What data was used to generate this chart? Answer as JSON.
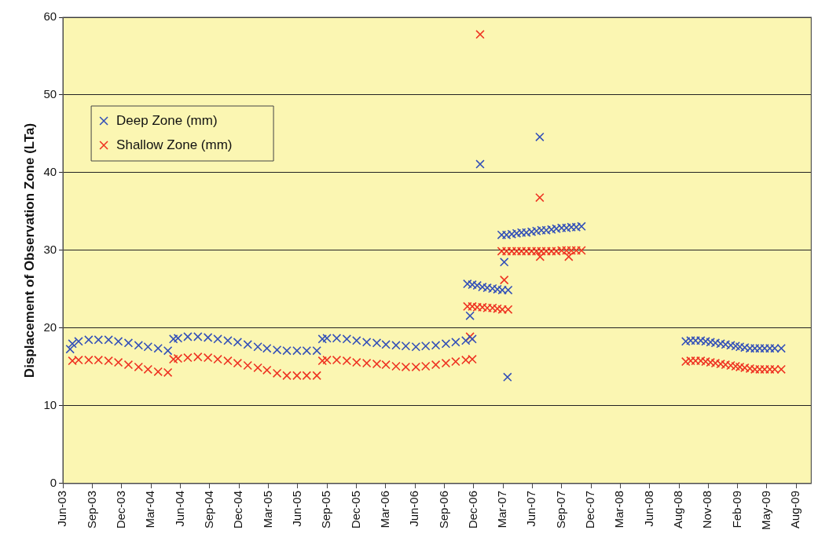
{
  "chart_data": {
    "type": "scatter",
    "ylabel": "Displacement of Observation Zone (LTa)",
    "xlim": [
      "2003-06-28",
      "2009-10-10"
    ],
    "xticks": [
      {
        "value": "2003-06-28",
        "label": "Jun-03"
      },
      {
        "value": "2003-09-26",
        "label": "Sep-03"
      },
      {
        "value": "2003-12-25",
        "label": "Dec-03"
      },
      {
        "value": "2004-03-24",
        "label": "Mar-04"
      },
      {
        "value": "2004-06-22",
        "label": "Jun-04"
      },
      {
        "value": "2004-09-20",
        "label": "Sep-04"
      },
      {
        "value": "2004-12-19",
        "label": "Dec-04"
      },
      {
        "value": "2005-03-19",
        "label": "Mar-05"
      },
      {
        "value": "2005-06-17",
        "label": "Jun-05"
      },
      {
        "value": "2005-09-15",
        "label": "Sep-05"
      },
      {
        "value": "2005-12-14",
        "label": "Dec-05"
      },
      {
        "value": "2006-03-14",
        "label": "Mar-06"
      },
      {
        "value": "2006-06-12",
        "label": "Jun-06"
      },
      {
        "value": "2006-09-10",
        "label": "Sep-06"
      },
      {
        "value": "2006-12-09",
        "label": "Dec-06"
      },
      {
        "value": "2007-03-09",
        "label": "Mar-07"
      },
      {
        "value": "2007-06-07",
        "label": "Jun-07"
      },
      {
        "value": "2007-09-05",
        "label": "Sep-07"
      },
      {
        "value": "2007-12-04",
        "label": "Dec-07"
      },
      {
        "value": "2008-03-03",
        "label": "Mar-08"
      },
      {
        "value": "2008-06-01",
        "label": "Jun-08"
      },
      {
        "value": "2008-08-30",
        "label": "Aug-08"
      },
      {
        "value": "2008-11-28",
        "label": "Nov-08"
      },
      {
        "value": "2009-02-26",
        "label": "Feb-09"
      },
      {
        "value": "2009-05-27",
        "label": "May-09"
      },
      {
        "value": "2009-08-25",
        "label": "Aug-09"
      }
    ],
    "ylim": [
      0,
      60
    ],
    "yticks": [
      0,
      10,
      20,
      30,
      40,
      50,
      60
    ],
    "grid": "y",
    "legend": "top left",
    "series": [
      {
        "name": "Deep Zone (mm)",
        "color": "#3350b8",
        "marker": "cross",
        "x": [
          "2003-07-20",
          "2003-07-27",
          "2003-08-15",
          "2003-09-15",
          "2003-10-15",
          "2003-11-15",
          "2003-12-15",
          "2004-01-15",
          "2004-02-15",
          "2004-03-15",
          "2004-04-15",
          "2004-05-15",
          "2004-06-01",
          "2004-06-15",
          "2004-07-15",
          "2004-08-15",
          "2004-09-15",
          "2004-10-15",
          "2004-11-15",
          "2004-12-15",
          "2005-01-15",
          "2005-02-15",
          "2005-03-15",
          "2005-04-15",
          "2005-05-15",
          "2005-06-15",
          "2005-07-15",
          "2005-08-15",
          "2005-09-01",
          "2005-09-15",
          "2005-10-15",
          "2005-11-15",
          "2005-12-15",
          "2006-01-15",
          "2006-02-15",
          "2006-03-15",
          "2006-04-15",
          "2006-05-15",
          "2006-06-15",
          "2006-07-15",
          "2006-08-15",
          "2006-09-15",
          "2006-10-15",
          "2006-11-15",
          "2006-12-05",
          "2006-11-28",
          "2006-12-29",
          "2007-03-13",
          "2007-03-23",
          "2007-06-30",
          "2006-11-20",
          "2006-12-05",
          "2006-12-20",
          "2007-01-05",
          "2007-01-20",
          "2007-02-05",
          "2007-02-20",
          "2007-03-07",
          "2007-03-25",
          "2007-03-05",
          "2007-03-20",
          "2007-04-05",
          "2007-04-20",
          "2007-05-05",
          "2007-05-20",
          "2007-06-05",
          "2007-06-20",
          "2007-07-05",
          "2007-07-20",
          "2007-08-05",
          "2007-08-20",
          "2007-09-05",
          "2007-09-20",
          "2007-10-05",
          "2007-10-20",
          "2007-11-05",
          "2008-09-20",
          "2008-10-05",
          "2008-10-20",
          "2008-11-05",
          "2008-11-20",
          "2008-12-05",
          "2008-12-20",
          "2009-01-05",
          "2009-01-20",
          "2009-02-05",
          "2009-02-20",
          "2009-03-05",
          "2009-03-20",
          "2009-04-05",
          "2009-04-20",
          "2009-05-05",
          "2009-05-20",
          "2009-06-05",
          "2009-06-20",
          "2009-07-10"
        ],
        "values": [
          17.3,
          18.0,
          18.3,
          18.5,
          18.5,
          18.5,
          18.3,
          18.1,
          17.8,
          17.6,
          17.4,
          17.1,
          18.6,
          18.7,
          18.9,
          18.9,
          18.8,
          18.6,
          18.4,
          18.2,
          17.9,
          17.6,
          17.4,
          17.2,
          17.1,
          17.1,
          17.1,
          17.1,
          18.6,
          18.7,
          18.7,
          18.6,
          18.4,
          18.2,
          18.1,
          17.9,
          17.8,
          17.7,
          17.6,
          17.7,
          17.8,
          18.0,
          18.2,
          18.4,
          18.6,
          21.6,
          41.1,
          28.5,
          13.7,
          44.6,
          25.7,
          25.6,
          25.5,
          25.3,
          25.2,
          25.1,
          25.0,
          24.9,
          24.9,
          32.0,
          32.0,
          32.1,
          32.2,
          32.3,
          32.3,
          32.4,
          32.5,
          32.6,
          32.6,
          32.7,
          32.8,
          32.9,
          32.9,
          33.0,
          33.0,
          33.1,
          18.3,
          18.4,
          18.4,
          18.4,
          18.3,
          18.2,
          18.1,
          18.0,
          17.9,
          17.8,
          17.7,
          17.6,
          17.5,
          17.4,
          17.4,
          17.4,
          17.4,
          17.4,
          17.4,
          17.4
        ]
      },
      {
        "name": "Shallow Zone (mm)",
        "color": "#ee3322",
        "marker": "cross",
        "x": [
          "2003-07-27",
          "2003-08-15",
          "2003-09-15",
          "2003-10-15",
          "2003-11-15",
          "2003-12-15",
          "2004-01-15",
          "2004-02-15",
          "2004-03-15",
          "2004-04-15",
          "2004-05-15",
          "2004-06-01",
          "2004-06-15",
          "2004-07-15",
          "2004-08-15",
          "2004-09-15",
          "2004-10-15",
          "2004-11-15",
          "2004-12-15",
          "2005-01-15",
          "2005-02-15",
          "2005-03-15",
          "2005-04-15",
          "2005-05-15",
          "2005-06-15",
          "2005-07-15",
          "2005-08-15",
          "2005-09-01",
          "2005-09-15",
          "2005-10-15",
          "2005-11-15",
          "2005-12-15",
          "2006-01-15",
          "2006-02-15",
          "2006-03-15",
          "2006-04-15",
          "2006-05-15",
          "2006-06-15",
          "2006-07-15",
          "2006-08-15",
          "2006-09-15",
          "2006-10-15",
          "2006-11-15",
          "2006-12-05",
          "2006-11-28",
          "2006-12-29",
          "2007-03-13",
          "2007-06-30",
          "2007-07-01",
          "2007-09-27",
          "2006-11-20",
          "2006-12-05",
          "2006-12-20",
          "2007-01-05",
          "2007-01-20",
          "2007-02-05",
          "2007-02-20",
          "2007-03-07",
          "2007-03-25",
          "2007-03-05",
          "2007-03-20",
          "2007-04-05",
          "2007-04-20",
          "2007-05-05",
          "2007-05-20",
          "2007-06-05",
          "2007-06-20",
          "2007-07-05",
          "2007-07-20",
          "2007-08-05",
          "2007-08-20",
          "2007-09-05",
          "2007-09-20",
          "2007-10-05",
          "2007-10-20",
          "2007-11-05",
          "2008-09-20",
          "2008-10-05",
          "2008-10-20",
          "2008-11-05",
          "2008-11-20",
          "2008-12-05",
          "2008-12-20",
          "2009-01-05",
          "2009-01-20",
          "2009-02-05",
          "2009-02-20",
          "2009-03-05",
          "2009-03-20",
          "2009-04-05",
          "2009-04-20",
          "2009-05-05",
          "2009-05-20",
          "2009-06-05",
          "2009-06-20",
          "2009-07-10"
        ],
        "values": [
          15.8,
          15.9,
          15.9,
          15.9,
          15.8,
          15.6,
          15.3,
          15.0,
          14.7,
          14.4,
          14.3,
          16.0,
          16.1,
          16.2,
          16.3,
          16.2,
          16.0,
          15.8,
          15.5,
          15.2,
          14.9,
          14.6,
          14.2,
          13.9,
          13.9,
          13.9,
          13.9,
          15.8,
          15.9,
          15.9,
          15.8,
          15.6,
          15.5,
          15.4,
          15.3,
          15.1,
          15.0,
          15.0,
          15.1,
          15.3,
          15.5,
          15.7,
          15.9,
          16.0,
          18.9,
          57.8,
          26.2,
          36.8,
          29.2,
          29.2,
          22.8,
          22.8,
          22.7,
          22.7,
          22.6,
          22.6,
          22.5,
          22.4,
          22.4,
          29.9,
          29.9,
          29.9,
          29.9,
          29.9,
          29.9,
          29.9,
          29.9,
          29.9,
          29.9,
          29.9,
          29.9,
          30.0,
          30.0,
          30.0,
          30.0,
          30.0,
          15.7,
          15.8,
          15.8,
          15.8,
          15.7,
          15.6,
          15.5,
          15.4,
          15.3,
          15.2,
          15.1,
          15.0,
          14.9,
          14.8,
          14.7,
          14.7,
          14.7,
          14.7,
          14.7,
          14.7
        ]
      }
    ]
  }
}
